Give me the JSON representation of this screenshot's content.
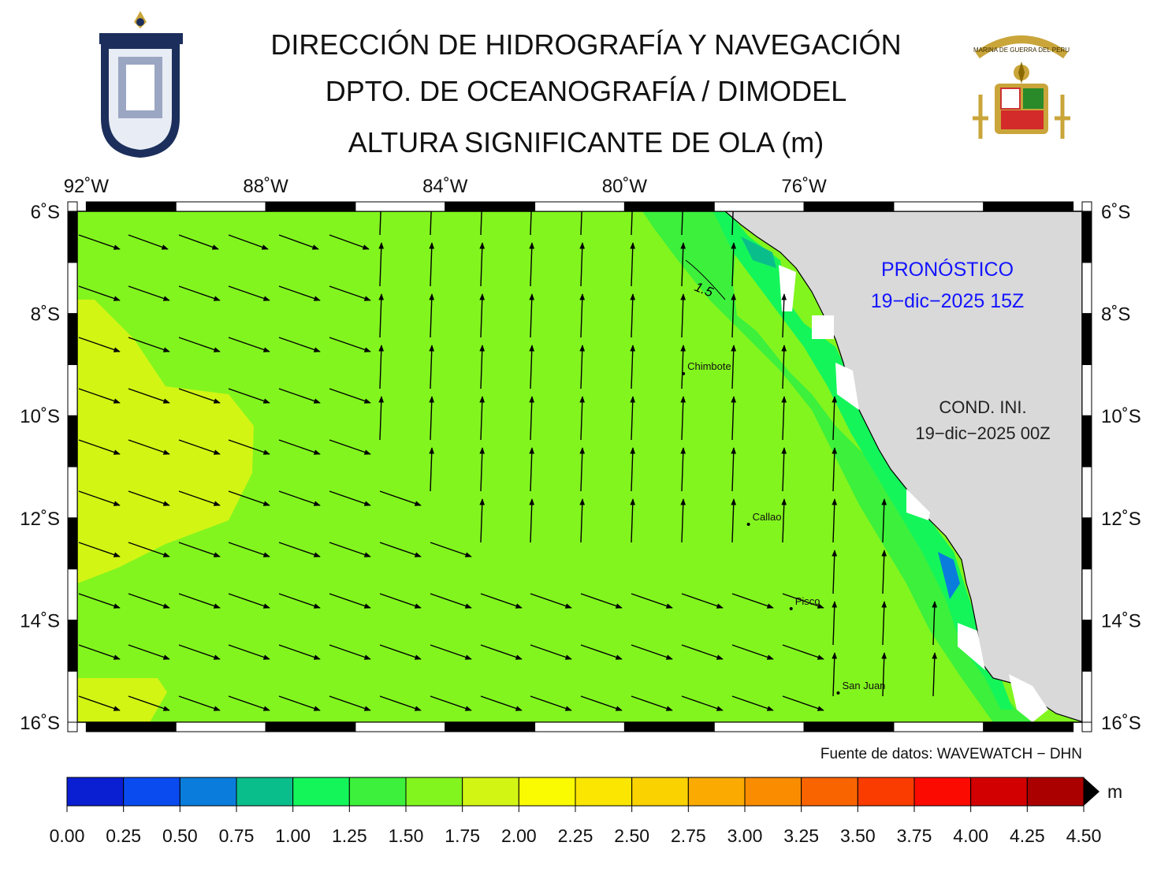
{
  "header": {
    "line1": "DIRECCIÓN DE HIDROGRAFÍA Y NAVEGACIÓN",
    "line2": "DPTO. DE OCEANOGRAFÍA / DIMODEL",
    "line3": "ALTURA SIGNIFICANTE DE OLA (m)"
  },
  "logos": {
    "left": "dhn-seal-icon",
    "right": "marina-de-guerra-crest-icon",
    "right_text": "MARINA DE GUERRA DEL PERU"
  },
  "map": {
    "lon_range": [
      -92.2,
      -69.8
    ],
    "lat_range": [
      -16,
      -6
    ],
    "lon_ticks": [
      "92˚W",
      "88˚W",
      "84˚W",
      "80˚W",
      "76˚W"
    ],
    "lat_ticks": [
      "6˚S",
      "8˚S",
      "10˚S",
      "12˚S",
      "14˚S",
      "16˚S"
    ],
    "contour_label": "1.5",
    "cities": [
      {
        "name": "Chimbote",
        "lon": -78.6,
        "lat": -9.1
      },
      {
        "name": "Callao",
        "lon": -77.15,
        "lat": -12.05
      },
      {
        "name": "Pisco",
        "lon": -76.2,
        "lat": -13.7
      },
      {
        "name": "San Juan",
        "lon": -75.15,
        "lat": -15.35
      }
    ],
    "forecast_label": "PRONÓSTICO",
    "forecast_time": "19−dic−2025 15Z",
    "init_label": "COND. INI.",
    "init_time": "19−dic−2025 00Z",
    "source": "Fuente de datos: WAVEWATCH − DHN",
    "land_color": "#d9d9d9"
  },
  "colorbar": {
    "unit": "m",
    "ticks": [
      "0.00",
      "0.25",
      "0.50",
      "0.75",
      "1.00",
      "1.25",
      "1.50",
      "1.75",
      "2.00",
      "2.25",
      "2.50",
      "2.75",
      "3.00",
      "3.25",
      "3.50",
      "3.75",
      "4.00",
      "4.25",
      "4.50"
    ],
    "colors": [
      "#0a1ed2",
      "#0a4bf0",
      "#0a7ddc",
      "#0abe8c",
      "#14f55a",
      "#3cf03c",
      "#82f51e",
      "#d2f514",
      "#fafa00",
      "#fae600",
      "#fad200",
      "#faaa00",
      "#fa8c00",
      "#fa6400",
      "#fa3c00",
      "#fa0a00",
      "#d20000",
      "#aa0000"
    ]
  }
}
